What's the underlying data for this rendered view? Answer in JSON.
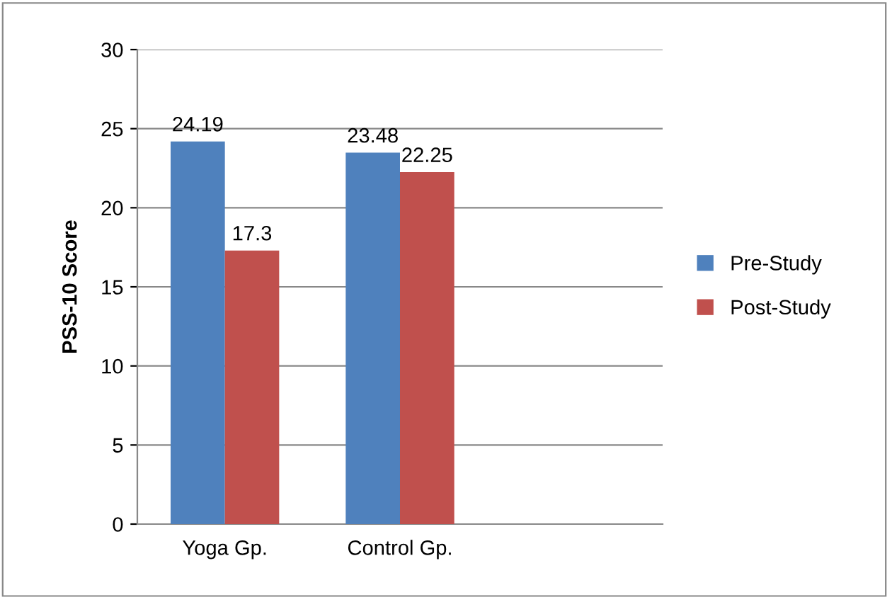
{
  "chart_data": {
    "type": "bar",
    "ylabel": "PSS-10 Score",
    "categories": [
      "Yoga Gp.",
      "Control Gp.",
      null
    ],
    "series": [
      {
        "name": "Pre-Study",
        "color": "#4f81bd",
        "values": [
          24.19,
          23.48,
          null
        ]
      },
      {
        "name": "Post-Study",
        "color": "#c0504d",
        "values": [
          17.3,
          22.25,
          null
        ]
      }
    ],
    "ylim": [
      0,
      30
    ],
    "yticks": [
      0,
      5,
      10,
      15,
      20,
      25,
      30
    ],
    "grid": "y",
    "legend": "right",
    "data_labels": true
  }
}
